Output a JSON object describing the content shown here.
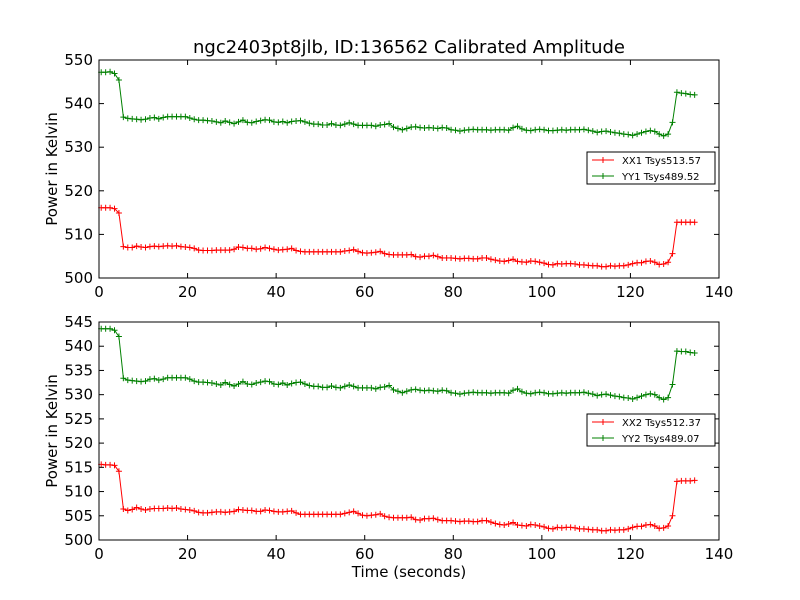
{
  "chart_data": [
    {
      "type": "line",
      "title": "ngc2403pt8jlb, ID:136562 Calibrated Amplitude",
      "xlabel": "",
      "ylabel": "Power in Kelvin",
      "xlim": [
        0,
        140
      ],
      "ylim": [
        500,
        550
      ],
      "xticks": [
        0,
        20,
        40,
        60,
        80,
        100,
        120,
        140
      ],
      "yticks": [
        500,
        510,
        520,
        530,
        540,
        550
      ],
      "grid": false,
      "legend_position": "right",
      "x": [
        0.5,
        1.5,
        2.5,
        3.5,
        4.5,
        5.5,
        6.5,
        7.5,
        8.5,
        9.5,
        10.5,
        11.5,
        12.5,
        13.5,
        14.5,
        15.5,
        16.5,
        17.5,
        18.5,
        19.5,
        20.5,
        21.5,
        22.5,
        23.5,
        24.5,
        25.5,
        26.5,
        27.5,
        28.5,
        29.5,
        30.5,
        31.5,
        32.5,
        33.5,
        34.5,
        35.5,
        36.5,
        37.5,
        38.5,
        39.5,
        40.5,
        41.5,
        42.5,
        43.5,
        44.5,
        45.5,
        46.5,
        47.5,
        48.5,
        49.5,
        50.5,
        51.5,
        52.5,
        53.5,
        54.5,
        55.5,
        56.5,
        57.5,
        58.5,
        59.5,
        60.5,
        61.5,
        62.5,
        63.5,
        64.5,
        65.5,
        66.5,
        67.5,
        68.5,
        69.5,
        70.5,
        71.5,
        72.5,
        73.5,
        74.5,
        75.5,
        76.5,
        77.5,
        78.5,
        79.5,
        80.5,
        81.5,
        82.5,
        83.5,
        84.5,
        85.5,
        86.5,
        87.5,
        88.5,
        89.5,
        90.5,
        91.5,
        92.5,
        93.5,
        94.5,
        95.5,
        96.5,
        97.5,
        98.5,
        99.5,
        100.5,
        101.5,
        102.5,
        103.5,
        104.5,
        105.5,
        106.5,
        107.5,
        108.5,
        109.5,
        110.5,
        111.5,
        112.5,
        113.5,
        114.5,
        115.5,
        116.5,
        117.5,
        118.5,
        119.5,
        120.5,
        121.5,
        122.5,
        123.5,
        124.5,
        125.5,
        126.5,
        127.5,
        128.5,
        129.5,
        130.5,
        131.5,
        132.5,
        133.5,
        134.5
      ],
      "series": [
        {
          "name": "XX1 Tsys513.57",
          "color": "#ff0000",
          "values": [
            516.1,
            516.1,
            516.1,
            515.9,
            514.9,
            507.2,
            507.0,
            507.0,
            507.3,
            507.1,
            507.0,
            507.2,
            507.3,
            507.2,
            507.3,
            507.4,
            507.3,
            507.4,
            507.2,
            507.1,
            507.0,
            506.8,
            506.4,
            506.3,
            506.3,
            506.3,
            506.4,
            506.4,
            506.4,
            506.4,
            506.6,
            507.1,
            507.0,
            506.8,
            506.8,
            506.6,
            506.7,
            507.0,
            506.8,
            506.6,
            506.4,
            506.5,
            506.6,
            506.8,
            506.3,
            506.1,
            506.0,
            506.0,
            506.0,
            506.0,
            506.0,
            506.0,
            506.0,
            506.0,
            506.0,
            506.2,
            506.3,
            506.5,
            506.1,
            505.8,
            505.7,
            505.8,
            505.9,
            506.1,
            505.6,
            505.4,
            505.3,
            505.3,
            505.3,
            505.3,
            505.4,
            504.9,
            504.8,
            505.0,
            505.0,
            505.2,
            504.9,
            504.6,
            504.6,
            504.6,
            504.5,
            504.4,
            504.5,
            504.5,
            504.4,
            504.4,
            504.6,
            504.6,
            504.3,
            504.1,
            503.9,
            503.8,
            504.0,
            504.3,
            503.8,
            503.7,
            503.6,
            503.9,
            503.8,
            503.6,
            503.4,
            503.1,
            503.0,
            503.3,
            503.2,
            503.3,
            503.3,
            503.2,
            503.0,
            503.0,
            502.9,
            502.8,
            502.8,
            502.6,
            502.6,
            502.8,
            502.7,
            502.8,
            502.8,
            503.0,
            503.3,
            503.5,
            503.5,
            503.8,
            503.9,
            503.6,
            503.1,
            503.2,
            503.6,
            505.6,
            512.8,
            512.8,
            512.8,
            512.8,
            512.8
          ]
        },
        {
          "name": "YY1 Tsys489.52",
          "color": "#008000",
          "values": [
            547.2,
            547.2,
            547.3,
            546.9,
            545.4,
            536.9,
            536.6,
            536.5,
            536.4,
            536.3,
            536.4,
            536.7,
            536.8,
            536.5,
            536.8,
            537.0,
            537.0,
            537.0,
            537.0,
            537.0,
            536.7,
            536.4,
            536.2,
            536.2,
            536.1,
            536.0,
            535.8,
            535.6,
            536.0,
            535.7,
            535.4,
            535.8,
            536.2,
            535.7,
            535.6,
            535.9,
            536.1,
            536.3,
            536.2,
            535.8,
            535.7,
            535.9,
            535.6,
            535.9,
            536.0,
            536.1,
            535.8,
            535.5,
            535.3,
            535.3,
            535.1,
            535.1,
            535.4,
            535.1,
            535.0,
            535.3,
            535.6,
            535.3,
            535.0,
            535.0,
            535.0,
            535.0,
            534.8,
            535.1,
            535.2,
            535.4,
            534.6,
            534.3,
            534.0,
            534.3,
            534.6,
            534.7,
            534.5,
            534.4,
            534.5,
            534.4,
            534.3,
            534.5,
            534.4,
            534.0,
            533.9,
            533.7,
            533.9,
            534.0,
            534.1,
            534.0,
            534.0,
            534.0,
            533.9,
            534.0,
            534.0,
            534.0,
            533.9,
            534.5,
            534.8,
            534.2,
            533.9,
            533.8,
            534.0,
            534.1,
            534.0,
            533.8,
            533.8,
            533.9,
            534.0,
            533.9,
            534.0,
            534.0,
            534.0,
            534.1,
            533.9,
            533.7,
            533.4,
            533.6,
            533.7,
            533.5,
            533.3,
            533.2,
            533.0,
            532.9,
            532.7,
            533.0,
            533.3,
            533.6,
            533.8,
            533.6,
            533.0,
            532.6,
            533.0,
            535.7,
            542.6,
            542.4,
            542.3,
            542.1,
            542.0
          ]
        }
      ]
    },
    {
      "type": "line",
      "title": "",
      "xlabel": "Time (seconds)",
      "ylabel": "Power in Kelvin",
      "xlim": [
        0,
        140
      ],
      "ylim": [
        500,
        545
      ],
      "xticks": [
        0,
        20,
        40,
        60,
        80,
        100,
        120,
        140
      ],
      "yticks": [
        500,
        505,
        510,
        515,
        520,
        525,
        530,
        535,
        540,
        545
      ],
      "grid": false,
      "legend_position": "right",
      "x": [
        0.5,
        1.5,
        2.5,
        3.5,
        4.5,
        5.5,
        6.5,
        7.5,
        8.5,
        9.5,
        10.5,
        11.5,
        12.5,
        13.5,
        14.5,
        15.5,
        16.5,
        17.5,
        18.5,
        19.5,
        20.5,
        21.5,
        22.5,
        23.5,
        24.5,
        25.5,
        26.5,
        27.5,
        28.5,
        29.5,
        30.5,
        31.5,
        32.5,
        33.5,
        34.5,
        35.5,
        36.5,
        37.5,
        38.5,
        39.5,
        40.5,
        41.5,
        42.5,
        43.5,
        44.5,
        45.5,
        46.5,
        47.5,
        48.5,
        49.5,
        50.5,
        51.5,
        52.5,
        53.5,
        54.5,
        55.5,
        56.5,
        57.5,
        58.5,
        59.5,
        60.5,
        61.5,
        62.5,
        63.5,
        64.5,
        65.5,
        66.5,
        67.5,
        68.5,
        69.5,
        70.5,
        71.5,
        72.5,
        73.5,
        74.5,
        75.5,
        76.5,
        77.5,
        78.5,
        79.5,
        80.5,
        81.5,
        82.5,
        83.5,
        84.5,
        85.5,
        86.5,
        87.5,
        88.5,
        89.5,
        90.5,
        91.5,
        92.5,
        93.5,
        94.5,
        95.5,
        96.5,
        97.5,
        98.5,
        99.5,
        100.5,
        101.5,
        102.5,
        103.5,
        104.5,
        105.5,
        106.5,
        107.5,
        108.5,
        109.5,
        110.5,
        111.5,
        112.5,
        113.5,
        114.5,
        115.5,
        116.5,
        117.5,
        118.5,
        119.5,
        120.5,
        121.5,
        122.5,
        123.5,
        124.5,
        125.5,
        126.5,
        127.5,
        128.5,
        129.5,
        130.5,
        131.5,
        132.5,
        133.5,
        134.5
      ],
      "series": [
        {
          "name": "XX2 Tsys512.37",
          "color": "#ff0000",
          "values": [
            515.6,
            515.5,
            515.5,
            515.4,
            514.2,
            506.4,
            506.1,
            506.3,
            506.7,
            506.4,
            506.2,
            506.4,
            506.5,
            506.5,
            506.5,
            506.6,
            506.5,
            506.6,
            506.4,
            506.3,
            506.2,
            506.0,
            505.7,
            505.6,
            505.6,
            505.7,
            505.8,
            505.8,
            505.7,
            505.8,
            505.9,
            506.3,
            506.2,
            506.1,
            506.1,
            505.9,
            505.9,
            506.2,
            506.1,
            505.9,
            505.8,
            505.8,
            505.9,
            506.0,
            505.6,
            505.3,
            505.3,
            505.3,
            505.3,
            505.3,
            505.3,
            505.3,
            505.3,
            505.3,
            505.3,
            505.5,
            505.7,
            505.9,
            505.5,
            505.1,
            505.0,
            505.1,
            505.2,
            505.4,
            504.9,
            504.7,
            504.6,
            504.6,
            504.6,
            504.6,
            504.7,
            504.2,
            504.1,
            504.4,
            504.4,
            504.5,
            504.2,
            504.0,
            504.0,
            504.0,
            503.9,
            503.8,
            503.9,
            503.9,
            503.8,
            503.8,
            504.0,
            504.0,
            503.7,
            503.4,
            503.2,
            503.1,
            503.3,
            503.6,
            503.1,
            503.0,
            502.9,
            503.2,
            503.1,
            502.9,
            502.7,
            502.4,
            502.3,
            502.6,
            502.5,
            502.6,
            502.6,
            502.5,
            502.3,
            502.3,
            502.2,
            502.1,
            502.1,
            501.9,
            501.9,
            502.1,
            502.0,
            502.1,
            502.1,
            502.3,
            502.6,
            502.8,
            502.8,
            503.1,
            503.2,
            502.9,
            502.4,
            502.5,
            502.9,
            505.0,
            512.1,
            512.2,
            512.2,
            512.2,
            512.3
          ]
        },
        {
          "name": "YY2 Tsys489.07",
          "color": "#008000",
          "values": [
            543.6,
            543.6,
            543.6,
            543.3,
            542.0,
            533.4,
            533.0,
            532.9,
            532.8,
            532.7,
            532.8,
            533.2,
            533.3,
            533.0,
            533.2,
            533.5,
            533.5,
            533.5,
            533.5,
            533.5,
            533.2,
            532.8,
            532.6,
            532.6,
            532.5,
            532.4,
            532.2,
            532.0,
            532.5,
            532.1,
            531.8,
            532.2,
            532.7,
            532.2,
            532.1,
            532.4,
            532.6,
            532.8,
            532.7,
            532.2,
            532.1,
            532.4,
            532.0,
            532.3,
            532.5,
            532.6,
            532.2,
            531.9,
            531.7,
            531.7,
            531.5,
            531.5,
            531.8,
            531.5,
            531.4,
            531.7,
            532.0,
            531.7,
            531.4,
            531.4,
            531.4,
            531.4,
            531.2,
            531.5,
            531.6,
            531.9,
            531.0,
            530.7,
            530.4,
            530.7,
            531.0,
            531.1,
            530.9,
            530.8,
            530.9,
            530.8,
            530.7,
            530.9,
            530.8,
            530.4,
            530.3,
            530.1,
            530.3,
            530.4,
            530.5,
            530.4,
            530.4,
            530.4,
            530.3,
            530.4,
            530.4,
            530.4,
            530.3,
            530.9,
            531.2,
            530.6,
            530.3,
            530.2,
            530.4,
            530.5,
            530.4,
            530.2,
            530.2,
            530.3,
            530.4,
            530.3,
            530.4,
            530.4,
            530.4,
            530.5,
            530.3,
            530.1,
            529.8,
            530.0,
            530.1,
            529.9,
            529.7,
            529.6,
            529.4,
            529.3,
            529.1,
            529.4,
            529.7,
            530.0,
            530.2,
            530.0,
            529.4,
            529.0,
            529.4,
            532.1,
            539.0,
            538.9,
            538.9,
            538.7,
            538.6
          ]
        }
      ]
    }
  ]
}
